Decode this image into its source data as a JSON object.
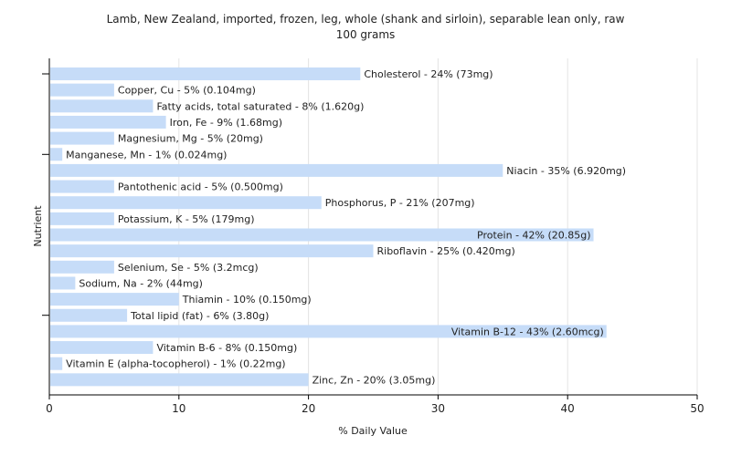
{
  "chart_data": {
    "type": "bar",
    "orientation": "horizontal",
    "title": "Lamb, New Zealand, imported, frozen, leg, whole (shank and sirloin), separable lean only, raw",
    "subtitle": "100 grams",
    "xlabel": "% Daily Value",
    "ylabel": "Nutrient",
    "xlim": [
      0,
      50
    ],
    "xticks": [
      0,
      10,
      20,
      30,
      40,
      50
    ],
    "grid": true,
    "bar_color": "#c6dcf8",
    "categories": [
      "Cholesterol",
      "Copper, Cu",
      "Fatty acids, total saturated",
      "Iron, Fe",
      "Magnesium, Mg",
      "Manganese, Mn",
      "Niacin",
      "Pantothenic acid",
      "Phosphorus, P",
      "Potassium, K",
      "Protein",
      "Riboflavin",
      "Selenium, Se",
      "Sodium, Na",
      "Thiamin",
      "Total lipid (fat)",
      "Vitamin B-12",
      "Vitamin B-6",
      "Vitamin E (alpha-tocopherol)",
      "Zinc, Zn"
    ],
    "values": [
      24,
      5,
      8,
      9,
      5,
      1,
      35,
      5,
      21,
      5,
      42,
      25,
      5,
      2,
      10,
      6,
      43,
      8,
      1,
      20
    ],
    "labels": [
      "Cholesterol - 24% (73mg)",
      "Copper, Cu - 5% (0.104mg)",
      "Fatty acids, total saturated - 8% (1.620g)",
      "Iron, Fe - 9% (1.68mg)",
      "Magnesium, Mg - 5% (20mg)",
      "Manganese, Mn - 1% (0.024mg)",
      "Niacin - 35% (6.920mg)",
      "Pantothenic acid - 5% (0.500mg)",
      "Phosphorus, P - 21% (207mg)",
      "Potassium, K - 5% (179mg)",
      "Protein - 42% (20.85g)",
      "Riboflavin - 25% (0.420mg)",
      "Selenium, Se - 5% (3.2mcg)",
      "Sodium, Na - 2% (44mg)",
      "Thiamin - 10% (0.150mg)",
      "Total lipid (fat) - 6% (3.80g)",
      "Vitamin B-12 - 43% (2.60mcg)",
      "Vitamin B-6 - 8% (0.150mg)",
      "Vitamin E (alpha-tocopherol) - 1% (0.22mg)",
      "Zinc, Zn - 20% (3.05mg)"
    ],
    "labels_inside_bar": [
      false,
      false,
      false,
      false,
      false,
      false,
      false,
      false,
      false,
      false,
      true,
      false,
      false,
      false,
      false,
      false,
      true,
      false,
      false,
      false
    ]
  }
}
